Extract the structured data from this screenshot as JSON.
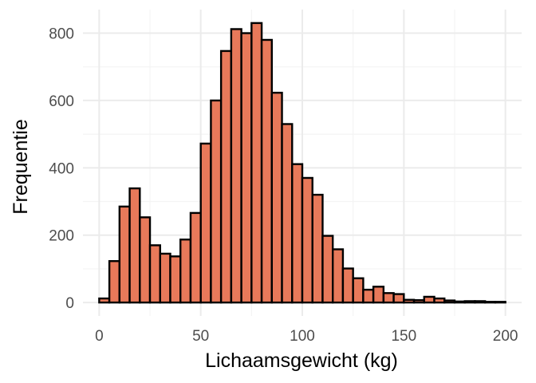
{
  "colors": {
    "bar_fill": "#e8795a",
    "bar_stroke": "#000000",
    "grid_major": "#ebebeb",
    "grid_minor": "#f4f4f4",
    "tick_text": "#4d4d4d",
    "title_text": "#000000"
  },
  "chart_data": {
    "type": "bar",
    "title": "",
    "xlabel": "Lichaamsgewicht (kg)",
    "ylabel": "Frequentie",
    "xlim": [
      -8,
      208
    ],
    "ylim": [
      -40,
      870
    ],
    "grid": true,
    "legend": "none",
    "xticks": [
      0,
      50,
      100,
      150,
      200
    ],
    "yticks": [
      0,
      200,
      400,
      600,
      800
    ],
    "xtick_labels": [
      "0",
      "50",
      "100",
      "150",
      "200"
    ],
    "ytick_labels": [
      "0",
      "200",
      "400",
      "600",
      "800"
    ],
    "bins": [
      {
        "x0": 0,
        "x1": 5,
        "count": 12
      },
      {
        "x0": 5,
        "x1": 10,
        "count": 123
      },
      {
        "x0": 10,
        "x1": 15,
        "count": 285
      },
      {
        "x0": 15,
        "x1": 20,
        "count": 339
      },
      {
        "x0": 20,
        "x1": 25,
        "count": 253
      },
      {
        "x0": 25,
        "x1": 30,
        "count": 170
      },
      {
        "x0": 30,
        "x1": 35,
        "count": 145
      },
      {
        "x0": 35,
        "x1": 40,
        "count": 137
      },
      {
        "x0": 40,
        "x1": 45,
        "count": 187
      },
      {
        "x0": 45,
        "x1": 50,
        "count": 266
      },
      {
        "x0": 50,
        "x1": 55,
        "count": 472
      },
      {
        "x0": 55,
        "x1": 60,
        "count": 600
      },
      {
        "x0": 60,
        "x1": 65,
        "count": 747
      },
      {
        "x0": 65,
        "x1": 70,
        "count": 812
      },
      {
        "x0": 70,
        "x1": 75,
        "count": 800
      },
      {
        "x0": 75,
        "x1": 80,
        "count": 830
      },
      {
        "x0": 80,
        "x1": 85,
        "count": 780
      },
      {
        "x0": 85,
        "x1": 90,
        "count": 623
      },
      {
        "x0": 90,
        "x1": 95,
        "count": 530
      },
      {
        "x0": 95,
        "x1": 100,
        "count": 411
      },
      {
        "x0": 100,
        "x1": 105,
        "count": 370
      },
      {
        "x0": 105,
        "x1": 110,
        "count": 320
      },
      {
        "x0": 110,
        "x1": 115,
        "count": 198
      },
      {
        "x0": 115,
        "x1": 120,
        "count": 158
      },
      {
        "x0": 120,
        "x1": 125,
        "count": 101
      },
      {
        "x0": 125,
        "x1": 130,
        "count": 72
      },
      {
        "x0": 130,
        "x1": 135,
        "count": 38
      },
      {
        "x0": 135,
        "x1": 140,
        "count": 47
      },
      {
        "x0": 140,
        "x1": 145,
        "count": 28
      },
      {
        "x0": 145,
        "x1": 150,
        "count": 25
      },
      {
        "x0": 150,
        "x1": 155,
        "count": 8
      },
      {
        "x0": 155,
        "x1": 160,
        "count": 7
      },
      {
        "x0": 160,
        "x1": 165,
        "count": 17
      },
      {
        "x0": 165,
        "x1": 170,
        "count": 12
      },
      {
        "x0": 170,
        "x1": 175,
        "count": 6
      },
      {
        "x0": 175,
        "x1": 180,
        "count": 3
      },
      {
        "x0": 180,
        "x1": 185,
        "count": 4
      },
      {
        "x0": 185,
        "x1": 190,
        "count": 4
      },
      {
        "x0": 190,
        "x1": 195,
        "count": 2
      },
      {
        "x0": 195,
        "x1": 200,
        "count": 2
      }
    ]
  }
}
